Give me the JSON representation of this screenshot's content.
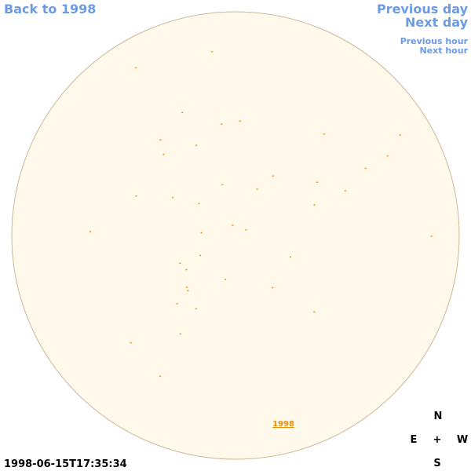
{
  "header": {
    "back_link": "Back to 1998",
    "previous_day": "Previous day",
    "next_day": "Next day",
    "previous_hour": "Previous hour",
    "next_hour": "Next hour"
  },
  "disk": {
    "year_link": "1998"
  },
  "compass": {
    "north": "N",
    "east": "E",
    "center": "+",
    "west": "W",
    "south": "S"
  },
  "timestamp": "1998-06-15T17:35:34"
}
